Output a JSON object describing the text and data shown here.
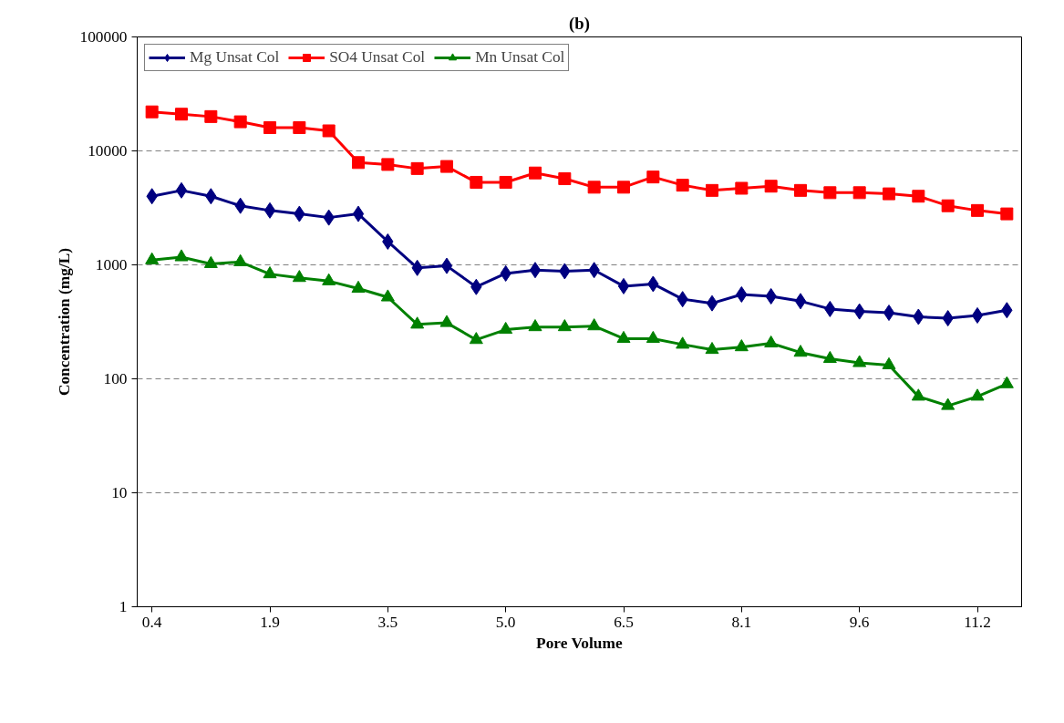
{
  "chart_data": {
    "type": "line",
    "title": "(b)",
    "xlabel": "Pore Volume",
    "ylabel": "Concentration (mg/L)",
    "categories": [
      "0.4",
      null,
      null,
      null,
      "1.9",
      null,
      null,
      null,
      "3.5",
      null,
      null,
      null,
      "5.0",
      null,
      null,
      null,
      "6.5",
      null,
      null,
      null,
      "8.1",
      null,
      null,
      null,
      "9.6",
      null,
      null,
      null,
      "11.2",
      null
    ],
    "series": [
      {
        "name": "Mg Unsat Col",
        "color": "#000080",
        "marker": "diamond",
        "values": [
          4000,
          4500,
          4000,
          3300,
          3000,
          2800,
          2600,
          2800,
          1600,
          940,
          980,
          640,
          840,
          900,
          880,
          900,
          650,
          680,
          500,
          460,
          550,
          530,
          480,
          410,
          390,
          380,
          350,
          340,
          360,
          400
        ]
      },
      {
        "name": "SO4 Unsat Col",
        "color": "#ff0000",
        "marker": "square",
        "values": [
          22000,
          21000,
          20000,
          18000,
          16000,
          16000,
          15000,
          7900,
          7600,
          7000,
          7300,
          5300,
          5300,
          6400,
          5700,
          4800,
          4800,
          5900,
          5000,
          4500,
          4700,
          4900,
          4500,
          4300,
          4300,
          4200,
          4000,
          3300,
          3000,
          2800
        ]
      },
      {
        "name": "Mn Unsat Col",
        "color": "#008000",
        "marker": "triangle",
        "values": [
          1100,
          1170,
          1020,
          1060,
          830,
          770,
          720,
          620,
          520,
          300,
          310,
          220,
          270,
          285,
          285,
          290,
          225,
          225,
          200,
          180,
          190,
          205,
          170,
          150,
          138,
          132,
          70,
          58,
          70,
          90
        ]
      }
    ],
    "log": true,
    "ylim": [
      1,
      100000
    ],
    "yticks": [
      1,
      10,
      100,
      1000,
      10000,
      100000
    ],
    "grid": "y",
    "legend": "top left",
    "line_style": "solid"
  }
}
